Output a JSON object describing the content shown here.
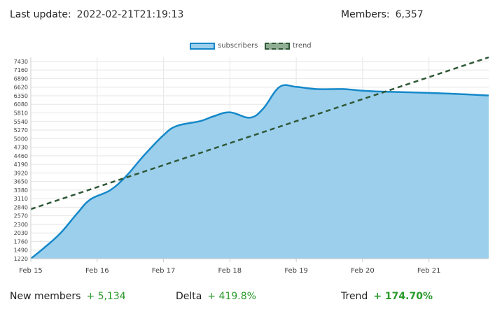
{
  "header": {
    "last_update_label": "Last update:",
    "last_update_value": "2022-02-21T21:19:13",
    "members_label": "Members:",
    "members_value": "6,357"
  },
  "legend": {
    "subscribers_label": "subscribers",
    "trend_label": "trend"
  },
  "footer": {
    "new_members_label": "New members",
    "new_members_value": "+ 5,134",
    "delta_label": "Delta",
    "delta_value": "+ 419.8%",
    "trend_label": "Trend",
    "trend_value": "+ 174.70%"
  },
  "colors": {
    "area_fill": "#9ccfec",
    "area_line": "#1588c9",
    "trend_line": "#2f5837",
    "grid": "#e6e6e6",
    "positive": "#2a9a2a"
  },
  "chart_data": {
    "type": "area",
    "x_unit": "days",
    "x_ticks": [
      {
        "label": "Feb 15",
        "x": 0
      },
      {
        "label": "Feb 16",
        "x": 1
      },
      {
        "label": "Feb 17",
        "x": 2
      },
      {
        "label": "Feb 18",
        "x": 3
      },
      {
        "label": "Feb 19",
        "x": 4
      },
      {
        "label": "Feb 20",
        "x": 5
      },
      {
        "label": "Feb 21",
        "x": 6
      }
    ],
    "xlim": [
      0,
      6.9
    ],
    "y_ticks": [
      1220,
      1490,
      1760,
      2030,
      2300,
      2570,
      2840,
      3110,
      3380,
      3650,
      3920,
      4190,
      4460,
      4730,
      5000,
      5270,
      5540,
      5810,
      6080,
      6350,
      6620,
      6890,
      7160,
      7430
    ],
    "ylim": [
      1220,
      7560
    ],
    "grid": true,
    "legend_position": "top-center",
    "series": [
      {
        "name": "subscribers",
        "x": [
          0,
          0.2,
          0.45,
          0.7,
          0.9,
          1.2,
          1.45,
          1.7,
          2.0,
          2.2,
          2.55,
          2.75,
          3.0,
          3.3,
          3.5,
          3.75,
          4.0,
          4.3,
          4.7,
          5.0,
          5.3,
          5.7,
          6.0,
          6.5,
          6.9
        ],
        "values": [
          1220,
          1560,
          2030,
          2650,
          3090,
          3380,
          3850,
          4460,
          5110,
          5400,
          5550,
          5700,
          5830,
          5660,
          5940,
          6630,
          6630,
          6560,
          6560,
          6510,
          6480,
          6460,
          6440,
          6400,
          6357
        ]
      },
      {
        "name": "trend",
        "style": "dashed",
        "x": [
          0,
          6.9
        ],
        "values": [
          2780,
          7560
        ]
      }
    ]
  }
}
